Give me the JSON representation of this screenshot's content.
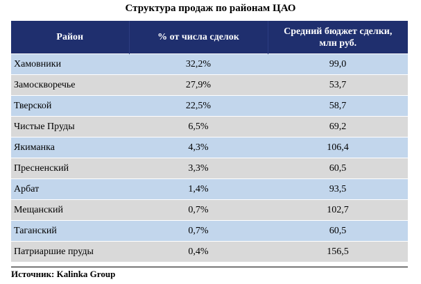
{
  "title": "Структура продаж по районам ЦАО",
  "headers": {
    "district": "Район",
    "share": "% от числа сделок",
    "budget_line1": "Средний бюджет сделки,",
    "budget_line2": "млн руб."
  },
  "rows": [
    {
      "district": "Хамовники",
      "share": "32,2%",
      "budget": "99,0"
    },
    {
      "district": "Замоскворечье",
      "share": "27,9%",
      "budget": "53,7"
    },
    {
      "district": "Тверской",
      "share": "22,5%",
      "budget": "58,7"
    },
    {
      "district": "Чистые Пруды",
      "share": "6,5%",
      "budget": "69,2"
    },
    {
      "district": "Якиманка",
      "share": "4,3%",
      "budget": "106,4"
    },
    {
      "district": "Пресненский",
      "share": "3,3%",
      "budget": "60,5"
    },
    {
      "district": "Арбат",
      "share": "1,4%",
      "budget": "93,5"
    },
    {
      "district": "Мещанский",
      "share": "0,7%",
      "budget": "102,7"
    },
    {
      "district": "Таганский",
      "share": "0,7%",
      "budget": "60,5"
    },
    {
      "district": "Патриаршие пруды",
      "share": "0,4%",
      "budget": "156,5"
    }
  ],
  "source": "Источник: Kalinka Group",
  "colors": {
    "header_bg": "#1f2f6e",
    "row_blue": "#c2d6ec",
    "row_gray": "#d9d9d9"
  }
}
